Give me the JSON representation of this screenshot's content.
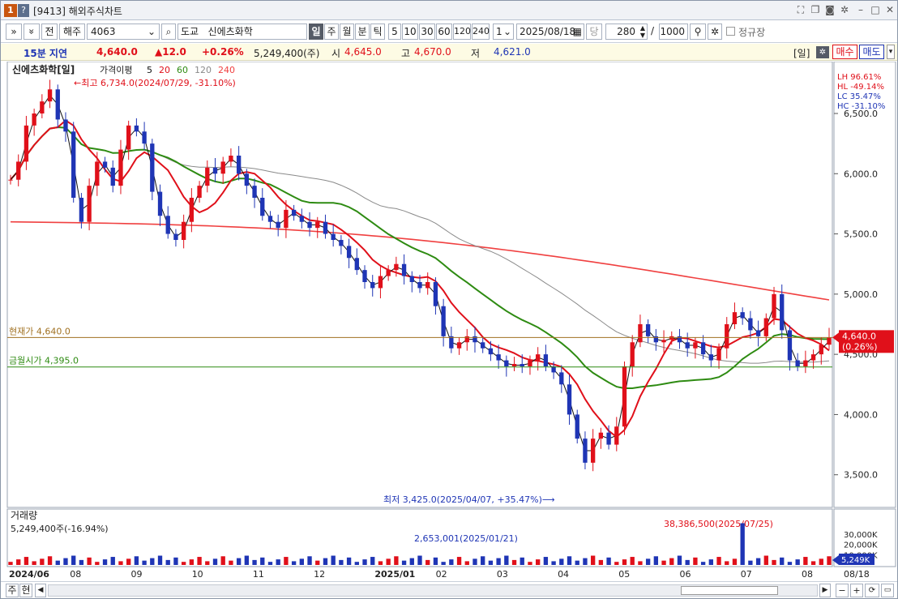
{
  "window": {
    "code": "[9413]",
    "title": "해외주식차트"
  },
  "toolbar": {
    "btn_prev": "»",
    "btn_down": "»",
    "btn_jeon": "전",
    "market": "해주",
    "code": "4063",
    "exchange": "도교",
    "name": "신에츠화학",
    "periods": [
      "일",
      "주",
      "월",
      "분",
      "틱"
    ],
    "selected_period": "일",
    "minute_opts": [
      "5",
      "10",
      "30",
      "60",
      "120",
      "240"
    ],
    "unit": "1",
    "date": "2025/08/18",
    "dang": "당",
    "count": "280",
    "slash": "/",
    "max": "1000",
    "regular_label": "정규장"
  },
  "quote": {
    "delay": "15분 지연",
    "price": "4,640.0",
    "change": "▲12.0",
    "change_pct": "+0.26%",
    "volume": "5,249,400(주)",
    "open_label": "시",
    "open": "4,645.0",
    "high_label": "고",
    "high": "4,670.0",
    "low_label": "저",
    "low": "4,621.0",
    "period_tag": "[일]",
    "buy": "매수",
    "sell": "매도"
  },
  "chart": {
    "header_name": "신에츠화학[일]",
    "ma_label": "가격이평",
    "ma_periods": [
      "5",
      "20",
      "60",
      "120",
      "240"
    ],
    "ma_colors": [
      "#111111",
      "#e0101a",
      "#2e8b12",
      "#8a8a8a",
      "#f04040"
    ],
    "highest_note": "←최고 6,734.0(2024/07/29, -31.10%)",
    "lowest_note": "최저 3,425.0(2025/04/07, +35.47%)⟶",
    "current_label": "현재가 4,640.0",
    "close_label": "금월시가 4,395.0",
    "price_tag": "4,640.0",
    "price_pct_tag": "(0.26%)",
    "stats": [
      "LH  96.61%",
      "HL -49.14%",
      "LC  35.47%",
      "HC -31.10%"
    ],
    "y_ticks": [
      "6,500.0",
      "6,000.0",
      "5,500.0",
      "5,000.0",
      "4,500.0",
      "4,000.0",
      "3,500.0"
    ],
    "x_ticks": [
      "2024/06",
      "08",
      "09",
      "10",
      "11",
      "12",
      "2025/01",
      "02",
      "03",
      "04",
      "05",
      "06",
      "07",
      "08"
    ],
    "x_end_label": "08/18",
    "volume_title": "거래량",
    "volume_value": "5,249,400주(-16.94%)",
    "volume_note_1": "2,653,001(2025/01/21)",
    "volume_note_2": "38,386,500(2025/07/25)",
    "volume_ticks": [
      "30,000K",
      "20,000K",
      "10,000K"
    ],
    "volume_tag": "5,249K"
  },
  "bottom": {
    "btn1": "주",
    "btn2": "현"
  },
  "chart_data": {
    "type": "candlestick",
    "y_range": [
      3350,
      6850
    ],
    "volume_range": [
      0,
      40000
    ],
    "close_sample": [
      5950,
      6100,
      6400,
      6500,
      6600,
      6700,
      6450,
      6350,
      5800,
      5600,
      5900,
      6100,
      6050,
      5900,
      6200,
      6400,
      6350,
      6250,
      5850,
      5650,
      5500,
      5450,
      5600,
      5800,
      5900,
      6050,
      6000,
      6100,
      6150,
      6000,
      5900,
      5800,
      5650,
      5600,
      5550,
      5700,
      5650,
      5600,
      5550,
      5600,
      5500,
      5450,
      5400,
      5300,
      5200,
      5100,
      5050,
      5150,
      5200,
      5250,
      5150,
      5100,
      5050,
      5100,
      4900,
      4650,
      4550,
      4600,
      4650,
      4600,
      4550,
      4500,
      4450,
      4400,
      4420,
      4400,
      4450,
      4500,
      4400,
      4350,
      4250,
      4000,
      3800,
      3600,
      3800,
      3850,
      3750,
      3900,
      4400,
      4600,
      4750,
      4650,
      4600,
      4620,
      4650,
      4600,
      4550,
      4600,
      4500,
      4450,
      4550,
      4750,
      4850,
      4800,
      4700,
      4650,
      4800,
      5000,
      4700,
      4450,
      4400,
      4450,
      4500,
      4580,
      4640
    ],
    "moving_averages": [
      "5",
      "20",
      "60",
      "120",
      "240"
    ]
  }
}
